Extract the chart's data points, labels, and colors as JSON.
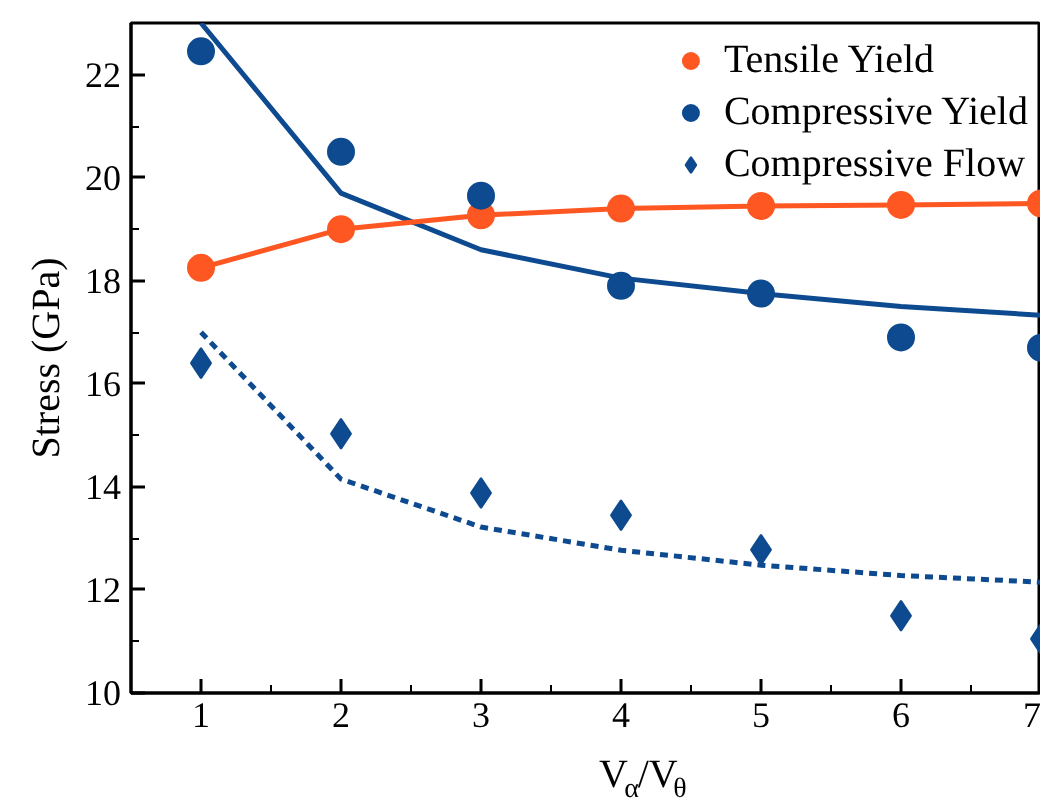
{
  "chart_data": {
    "type": "scatter",
    "xlabel": "V$_{α}$/V$_{θ}$",
    "ylabel": "Stress (GPa)",
    "x": [
      1,
      2,
      3,
      4,
      5,
      6,
      7
    ],
    "xlim": [
      0.5,
      7
    ],
    "ylim": [
      10,
      23
    ],
    "xticks": [
      1,
      2,
      3,
      4,
      5,
      6,
      7
    ],
    "yticks": [
      10,
      12,
      14,
      16,
      18,
      20,
      22
    ],
    "legend": "top right",
    "series": [
      {
        "type": "line",
        "color": "#0d4a8f",
        "marker": "none",
        "line_style": "solid",
        "values": [
          23.0,
          19.7,
          18.6,
          18.05,
          17.75,
          17.5,
          17.33
        ]
      },
      {
        "type": "line",
        "color": "#0d4a8f",
        "marker": "none",
        "line_style": "dashed",
        "values": [
          17.0,
          14.15,
          13.22,
          12.77,
          12.48,
          12.28,
          12.15
        ]
      },
      {
        "name": "Tensile Yield",
        "type": "line",
        "color": "#fe5722",
        "marker": "circle",
        "line_style": "solid",
        "values": [
          18.25,
          19.0,
          19.27,
          19.4,
          19.45,
          19.47,
          19.5
        ]
      },
      {
        "name": "Compressive Yield",
        "type": "scatter",
        "color": "#0d4a8f",
        "marker": "circle",
        "values": [
          22.45,
          20.5,
          19.65,
          17.9,
          17.75,
          16.9,
          16.7
        ]
      },
      {
        "name": "Compressive Flow",
        "type": "scatter",
        "color": "#0d4a8f",
        "marker": "diamond",
        "values": [
          16.4,
          15.03,
          13.88,
          13.45,
          12.78,
          11.5,
          11.05
        ]
      }
    ]
  }
}
